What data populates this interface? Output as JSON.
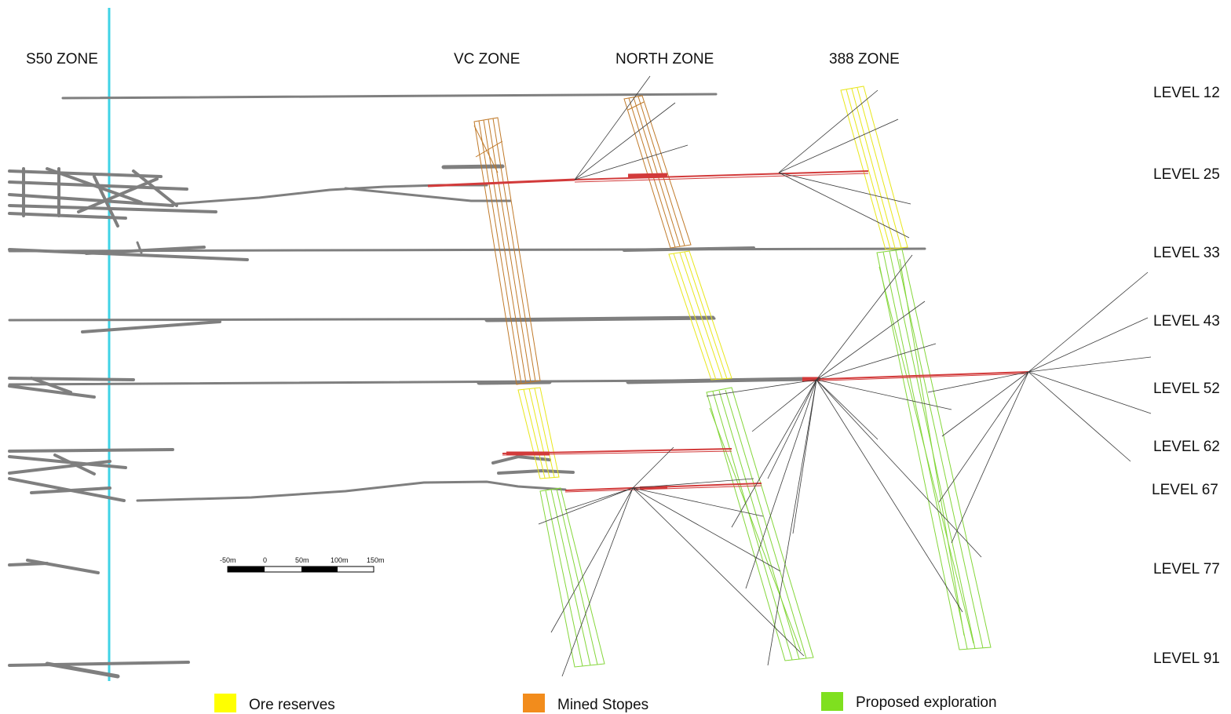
{
  "zones": [
    "S50 ZONE",
    "VC ZONE",
    "NORTH ZONE",
    "388 ZONE"
  ],
  "levels": [
    "LEVEL 12",
    "LEVEL 25",
    "LEVEL 33",
    "LEVEL 43",
    "LEVEL 52",
    "LEVEL 62",
    "LEVEL 67",
    "LEVEL 77",
    "LEVEL 91"
  ],
  "scale_bar": {
    "ticks": [
      "-50m",
      "0",
      "50m",
      "100m",
      "150m"
    ]
  },
  "legend": [
    {
      "label": "Ore reserves",
      "color": "#ffff00"
    },
    {
      "label": "Mined Stopes",
      "color": "#f28c1c"
    },
    {
      "label": "Proposed exploration",
      "color": "#7fe01f"
    }
  ],
  "colors": {
    "drift": "#7f7f7f",
    "shaft": "#3fd3e6",
    "drill_hole": "#3a3a3a",
    "drill_drive": "#d23a3a",
    "ore_reserves_stroke": "#e8e61a",
    "mined_stopes_stroke": "#c07a2a",
    "proposed_exploration_stroke": "#84d63a"
  }
}
